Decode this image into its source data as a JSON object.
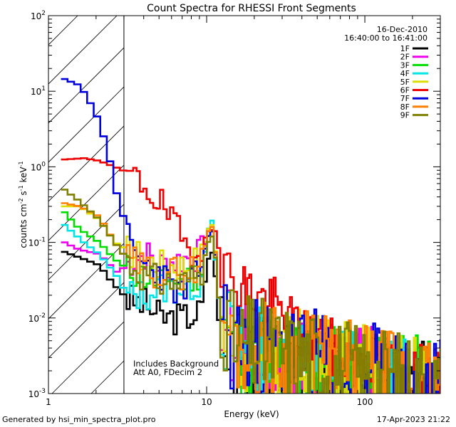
{
  "chart_data": {
    "type": "line",
    "title": "Count Spectra for RHESSI Front Segments",
    "xlabel": "Energy (keV)",
    "ylabel_main": "counts cm",
    "ylabel_exp1": "-2",
    "ylabel_mid": " s",
    "ylabel_exp2": "-1",
    "ylabel_unit": " keV",
    "ylabel_exp3": "-1",
    "xscale": "log",
    "yscale": "log",
    "xlim": [
      1,
      300
    ],
    "ylim": [
      0.001,
      100
    ],
    "x_ticks": [
      {
        "v": 1,
        "label": "1"
      },
      {
        "v": 10,
        "label": "10"
      },
      {
        "v": 100,
        "label": "100"
      }
    ],
    "y_ticks": [
      {
        "v": 0.001,
        "base": "10",
        "exp": "-3"
      },
      {
        "v": 0.01,
        "base": "10",
        "exp": "-2"
      },
      {
        "v": 0.1,
        "base": "10",
        "exp": "-1"
      },
      {
        "v": 1,
        "base": "10",
        "exp": "0"
      },
      {
        "v": 10,
        "base": "10",
        "exp": "1"
      },
      {
        "v": 100,
        "base": "10",
        "exp": "2"
      }
    ],
    "excluded_region": [
      1,
      3
    ],
    "date": "16-Dec-2010",
    "time_range": "16:40:00 to 16:41:00",
    "notes": [
      "Includes Background",
      "Att A0, FDecim 2"
    ],
    "series": [
      {
        "name": "1F",
        "color": "#000000",
        "seed": 3,
        "base_shift": 0.42,
        "points": [
          [
            1.2,
            0.075
          ],
          [
            1.6,
            0.06
          ],
          [
            2,
            0.05
          ],
          [
            2.4,
            0.03
          ],
          [
            3,
            0.018
          ],
          [
            4,
            0.015
          ],
          [
            5,
            0.01
          ],
          [
            7,
            0.01
          ],
          [
            9,
            0.012
          ],
          [
            10,
            0.06
          ],
          [
            10.8,
            0.08
          ],
          [
            11.5,
            0.01
          ],
          [
            14,
            0.003
          ],
          [
            20,
            0.0025
          ],
          [
            40,
            0.0015
          ],
          [
            80,
            0.0012
          ],
          [
            150,
            0.001
          ],
          [
            300,
            0.001
          ]
        ]
      },
      {
        "name": "2F",
        "color": "#ee00ee",
        "seed": 7,
        "base_shift": 0.38,
        "points": [
          [
            1.2,
            0.1
          ],
          [
            1.5,
            0.08
          ],
          [
            2,
            0.07
          ],
          [
            2.6,
            0.04
          ],
          [
            3,
            0.05
          ],
          [
            4,
            0.07
          ],
          [
            5,
            0.05
          ],
          [
            7,
            0.06
          ],
          [
            9,
            0.07
          ],
          [
            10,
            0.12
          ],
          [
            10.8,
            0.15
          ],
          [
            11.5,
            0.02
          ],
          [
            14,
            0.004
          ],
          [
            20,
            0.003
          ],
          [
            40,
            0.002
          ],
          [
            80,
            0.0018
          ],
          [
            150,
            0.0015
          ],
          [
            300,
            0.0013
          ]
        ]
      },
      {
        "name": "3F",
        "color": "#00dd00",
        "seed": 11,
        "base_shift": 0.4,
        "points": [
          [
            1.2,
            0.25
          ],
          [
            1.5,
            0.15
          ],
          [
            2,
            0.1
          ],
          [
            2.5,
            0.06
          ],
          [
            3,
            0.045
          ],
          [
            4,
            0.035
          ],
          [
            5,
            0.03
          ],
          [
            7,
            0.03
          ],
          [
            9,
            0.04
          ],
          [
            10,
            0.12
          ],
          [
            10.8,
            0.15
          ],
          [
            11.5,
            0.02
          ],
          [
            14,
            0.004
          ],
          [
            20,
            0.003
          ],
          [
            40,
            0.002
          ],
          [
            80,
            0.0015
          ],
          [
            150,
            0.0013
          ],
          [
            300,
            0.0012
          ]
        ]
      },
      {
        "name": "4F",
        "color": "#00e5e5",
        "seed": 13,
        "base_shift": 0.42,
        "points": [
          [
            1.2,
            0.17
          ],
          [
            1.6,
            0.1
          ],
          [
            2,
            0.07
          ],
          [
            2.6,
            0.035
          ],
          [
            3,
            0.02
          ],
          [
            4,
            0.02
          ],
          [
            5,
            0.025
          ],
          [
            7,
            0.025
          ],
          [
            9,
            0.03
          ],
          [
            10,
            0.15
          ],
          [
            10.6,
            0.2
          ],
          [
            11.5,
            0.02
          ],
          [
            14,
            0.004
          ],
          [
            20,
            0.003
          ],
          [
            40,
            0.002
          ],
          [
            80,
            0.0015
          ],
          [
            150,
            0.0012
          ],
          [
            300,
            0.001
          ]
        ]
      },
      {
        "name": "5F",
        "color": "#dddd00",
        "seed": 17,
        "base_shift": 0.36,
        "points": [
          [
            1.2,
            0.3
          ],
          [
            1.5,
            0.3
          ],
          [
            2,
            0.2
          ],
          [
            2.5,
            0.1
          ],
          [
            3,
            0.08
          ],
          [
            4,
            0.06
          ],
          [
            5,
            0.05
          ],
          [
            7,
            0.05
          ],
          [
            9,
            0.06
          ],
          [
            10,
            0.15
          ],
          [
            10.8,
            0.18
          ],
          [
            11.5,
            0.02
          ],
          [
            14,
            0.005
          ],
          [
            20,
            0.004
          ],
          [
            40,
            0.003
          ],
          [
            80,
            0.002
          ],
          [
            150,
            0.0015
          ],
          [
            300,
            0.0012
          ]
        ]
      },
      {
        "name": "6F",
        "color": "#ee0000",
        "seed": 19,
        "base_shift": 0.1,
        "points": [
          [
            1.2,
            1.25
          ],
          [
            1.6,
            1.3
          ],
          [
            2,
            1.2
          ],
          [
            2.5,
            1.0
          ],
          [
            3,
            0.85
          ],
          [
            4,
            0.55
          ],
          [
            5,
            0.32
          ],
          [
            6,
            0.18
          ],
          [
            7,
            0.1
          ],
          [
            8,
            0.08
          ],
          [
            9,
            0.09
          ],
          [
            10,
            0.14
          ],
          [
            11,
            0.15
          ],
          [
            12,
            0.06
          ],
          [
            14,
            0.03
          ],
          [
            17,
            0.025
          ],
          [
            20,
            0.02
          ],
          [
            26,
            0.015
          ],
          [
            30,
            0.01
          ],
          [
            40,
            0.006
          ],
          [
            60,
            0.004
          ],
          [
            100,
            0.003
          ],
          [
            150,
            0.0022
          ],
          [
            300,
            0.0015
          ]
        ]
      },
      {
        "name": "7F",
        "color": "#0000dd",
        "seed": 23,
        "base_shift": 0.4,
        "points": [
          [
            1.2,
            14.5
          ],
          [
            1.5,
            12
          ],
          [
            1.7,
            8
          ],
          [
            2,
            4
          ],
          [
            2.3,
            1.4
          ],
          [
            2.6,
            0.4
          ],
          [
            3,
            0.15
          ],
          [
            3.3,
            0.07
          ],
          [
            4,
            0.05
          ],
          [
            5,
            0.04
          ],
          [
            6,
            0.025
          ],
          [
            7,
            0.02
          ],
          [
            8,
            0.03
          ],
          [
            9,
            0.05
          ],
          [
            10,
            0.12
          ],
          [
            10.8,
            0.15
          ],
          [
            11.5,
            0.02
          ],
          [
            14,
            0.005
          ],
          [
            20,
            0.004
          ],
          [
            40,
            0.003
          ],
          [
            80,
            0.002
          ],
          [
            150,
            0.0015
          ],
          [
            300,
            0.0012
          ]
        ]
      },
      {
        "name": "8F",
        "color": "#ff8000",
        "seed": 29,
        "base_shift": 0.38,
        "points": [
          [
            1.2,
            0.33
          ],
          [
            1.5,
            0.3
          ],
          [
            2,
            0.22
          ],
          [
            2.5,
            0.1
          ],
          [
            3,
            0.06
          ],
          [
            4,
            0.045
          ],
          [
            5,
            0.04
          ],
          [
            7,
            0.04
          ],
          [
            9,
            0.05
          ],
          [
            10,
            0.14
          ],
          [
            10.8,
            0.17
          ],
          [
            11.5,
            0.02
          ],
          [
            14,
            0.005
          ],
          [
            20,
            0.004
          ],
          [
            40,
            0.003
          ],
          [
            80,
            0.002
          ],
          [
            150,
            0.0015
          ],
          [
            300,
            0.0012
          ]
        ]
      },
      {
        "name": "9F",
        "color": "#808000",
        "seed": 31,
        "base_shift": 0.4,
        "points": [
          [
            1.2,
            0.5
          ],
          [
            1.5,
            0.35
          ],
          [
            2,
            0.2
          ],
          [
            2.5,
            0.1
          ],
          [
            3,
            0.06
          ],
          [
            4,
            0.035
          ],
          [
            5,
            0.03
          ],
          [
            7,
            0.03
          ],
          [
            9,
            0.04
          ],
          [
            10,
            0.1
          ],
          [
            10.8,
            0.13
          ],
          [
            11.5,
            0.02
          ],
          [
            14,
            0.005
          ],
          [
            20,
            0.004
          ],
          [
            40,
            0.003
          ],
          [
            80,
            0.002
          ],
          [
            150,
            0.0015
          ],
          [
            300,
            0.0012
          ]
        ]
      }
    ]
  },
  "footer": {
    "generated_by": "Generated by hsi_min_spectra_plot.pro",
    "timestamp": "17-Apr-2023 21:22"
  }
}
